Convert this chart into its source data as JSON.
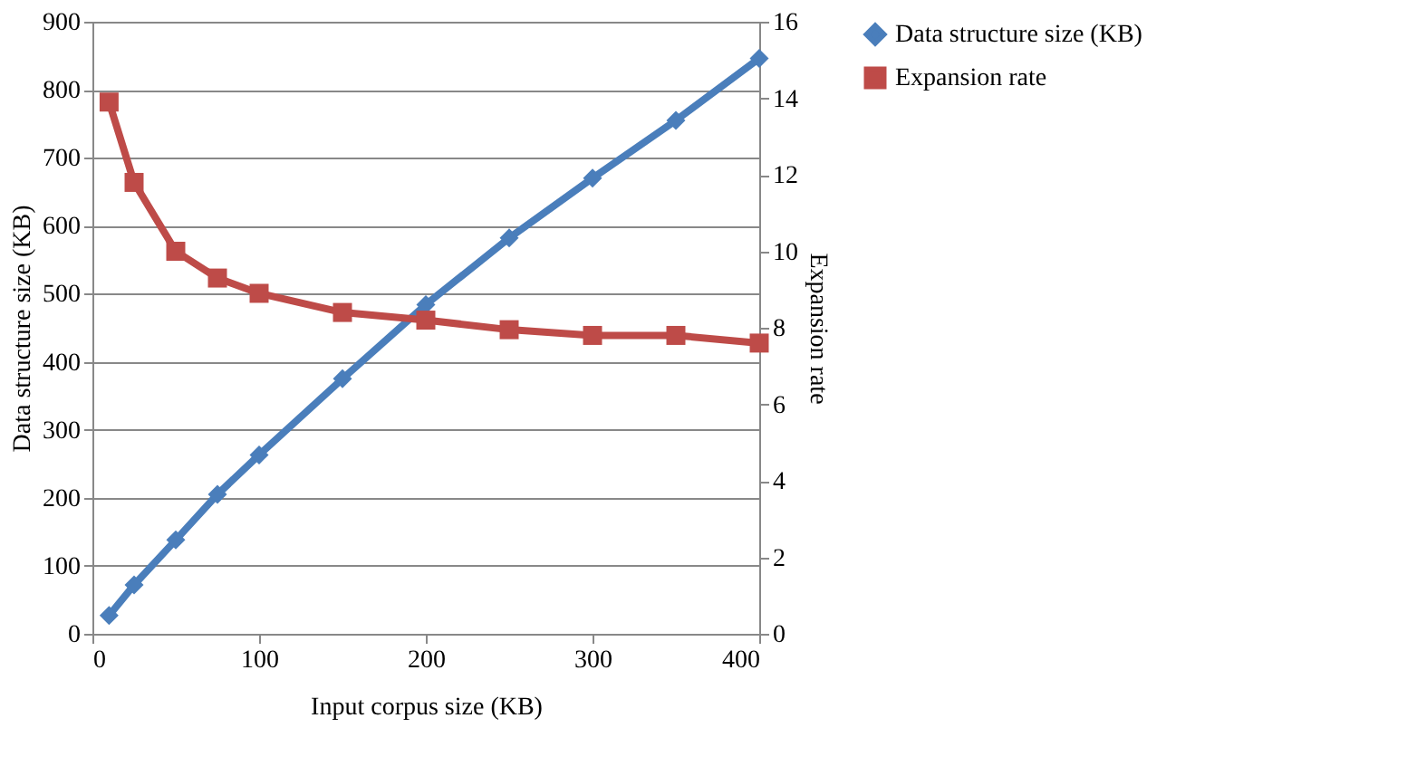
{
  "chart_data": {
    "type": "line",
    "xlabel": "Input corpus size (KB)",
    "ylabel": "Data structure size (KB)",
    "y2label": "Expansion rate",
    "x": [
      10,
      25,
      50,
      75,
      100,
      150,
      200,
      250,
      300,
      350,
      400
    ],
    "series": [
      {
        "name": "Data structure size (KB)",
        "color": "#4a7ebb",
        "marker": "diamond",
        "values": [
          27,
          72,
          138,
          205,
          263,
          375,
          484,
          582,
          670,
          755,
          846
        ]
      },
      {
        "name": "Expansion rate",
        "color": "#be4b48",
        "marker": "square",
        "axis": "y2",
        "values": [
          13.9,
          11.8,
          10.0,
          9.3,
          8.9,
          8.4,
          8.2,
          7.95,
          7.8,
          7.8,
          7.6
        ]
      }
    ],
    "xlim": [
      0,
      400
    ],
    "xticks": [
      0,
      100,
      200,
      300,
      400
    ],
    "ylim": [
      0,
      900
    ],
    "yticks": [
      0,
      100,
      200,
      300,
      400,
      500,
      600,
      700,
      800,
      900
    ],
    "y2lim": [
      0,
      16
    ],
    "y2ticks": [
      0,
      2,
      4,
      6,
      8,
      10,
      12,
      14,
      16
    ],
    "grid": "y",
    "legend": "right",
    "line_style": "solid"
  }
}
